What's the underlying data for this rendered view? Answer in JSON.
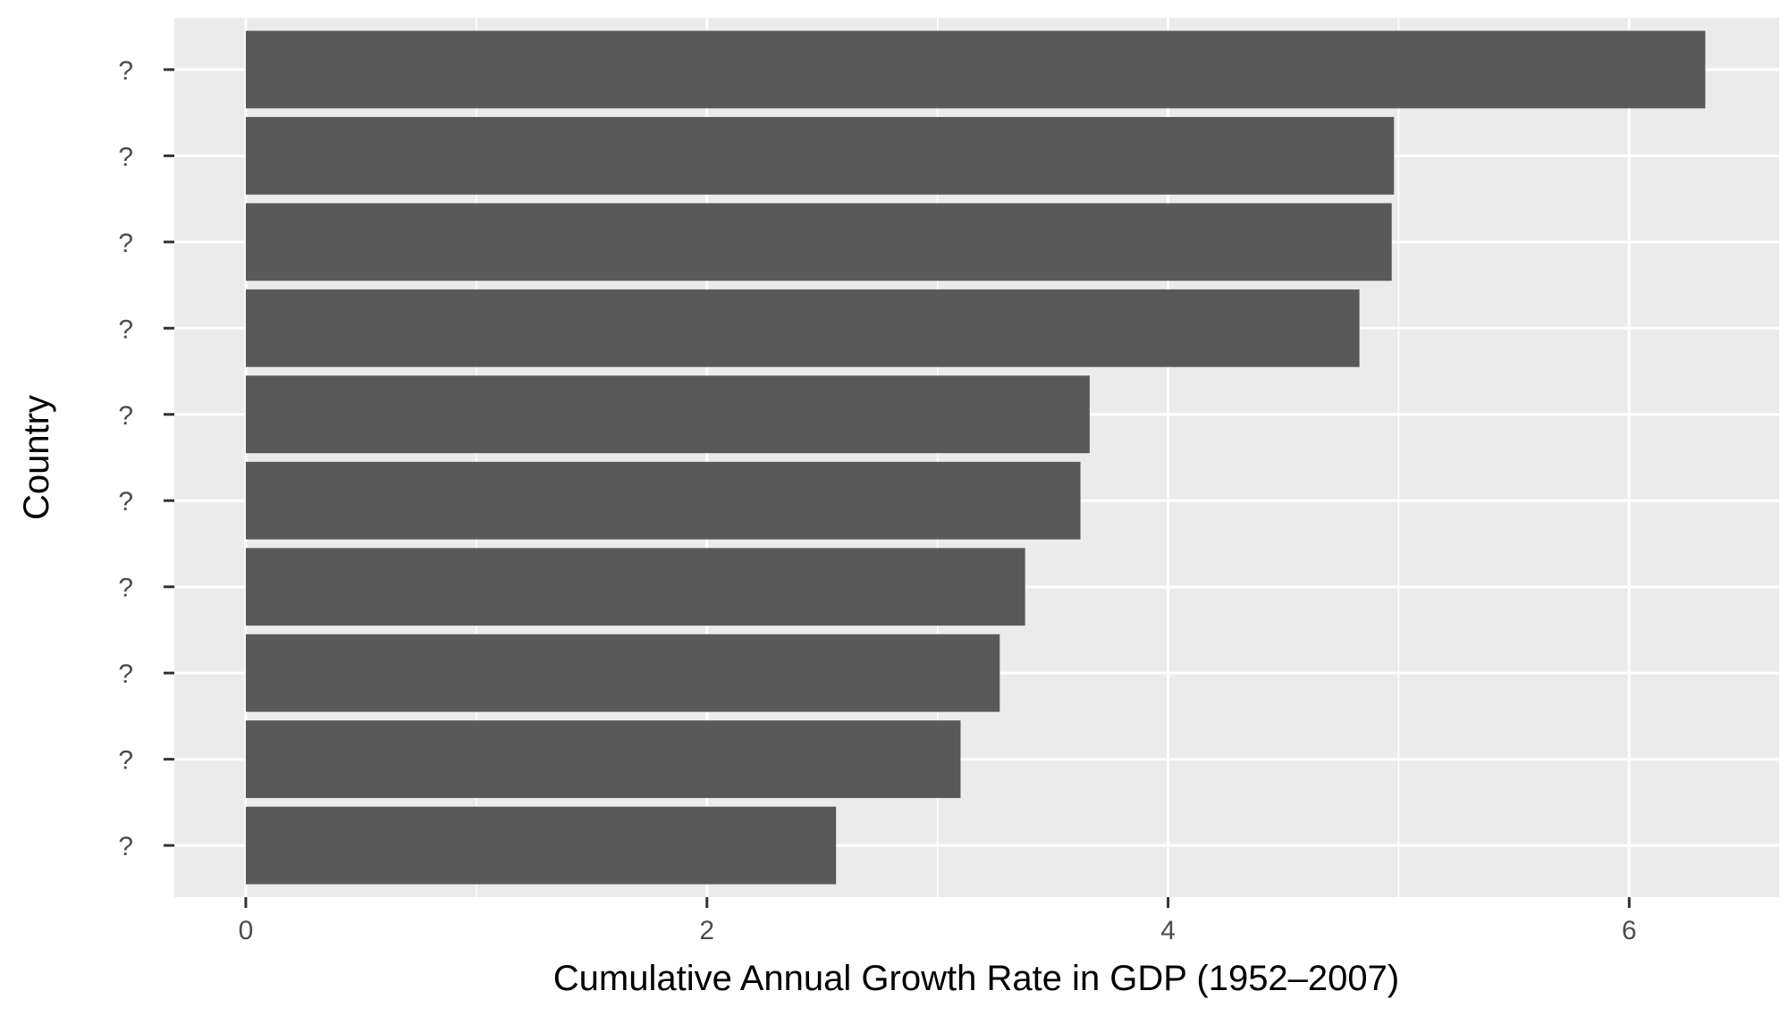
{
  "chart_data": {
    "type": "bar",
    "orientation": "horizontal",
    "title": "",
    "xlabel": "Cumulative Annual Growth Rate in GDP (1952–2007)",
    "ylabel": "Country",
    "categories": [
      "?",
      "?",
      "?",
      "?",
      "?",
      "?",
      "?",
      "?",
      "?",
      "?"
    ],
    "values": [
      6.33,
      4.98,
      4.97,
      4.83,
      3.66,
      3.62,
      3.38,
      3.27,
      3.1,
      2.56
    ],
    "xlim": [
      -0.31,
      6.65
    ],
    "xticks": [
      0,
      2,
      4,
      6
    ],
    "xtick_labels": [
      "0",
      "2",
      "4",
      "6"
    ],
    "grid": true,
    "legend": "none",
    "colors": {
      "bar": "#595959",
      "panel": "#ebebeb",
      "grid": "#ffffff"
    }
  }
}
